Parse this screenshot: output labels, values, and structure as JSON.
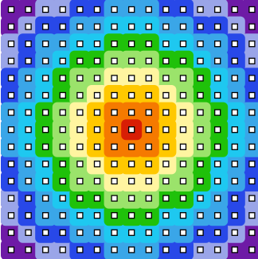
{
  "grid": {
    "columns": 15,
    "rows": 15,
    "center": {
      "col": 7,
      "row": 7
    }
  },
  "heatmap": {
    "max_level": 10,
    "shape": "hexagonal-diamond",
    "level_colors": [
      "#d81e05",
      "#f57a00",
      "#ffc800",
      "#fff5a0",
      "#9be36b",
      "#1fc10a",
      "#1ec8f0",
      "#3aa6e8",
      "#2848e8",
      "#9aa5e8",
      "#6e1aa6"
    ]
  },
  "cell_marker": {
    "icon": "hollow-square-icon",
    "stroke_color": "#000000",
    "fill_color": "#ffffff"
  }
}
